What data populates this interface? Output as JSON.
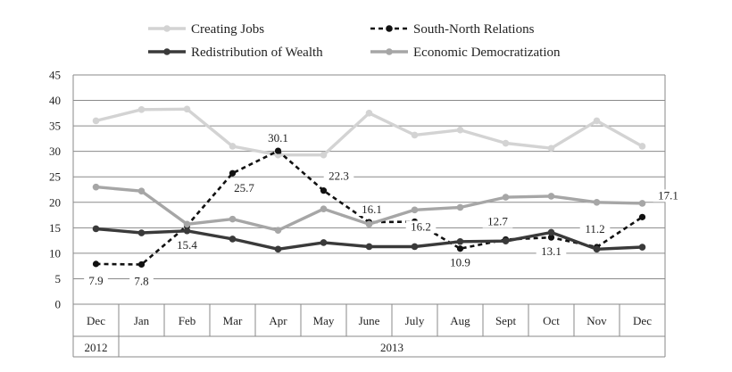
{
  "chart_data": {
    "type": "line",
    "categories": [
      "Dec",
      "Jan",
      "Feb",
      "Mar",
      "Apr",
      "May",
      "June",
      "July",
      "Aug",
      "Sept",
      "Oct",
      "Nov",
      "Dec"
    ],
    "year_groups": [
      {
        "label": "2012",
        "start": 0,
        "end": 0
      },
      {
        "label": "2013",
        "start": 1,
        "end": 12
      }
    ],
    "ylim": [
      0,
      45
    ],
    "yticks": [
      0,
      5,
      10,
      15,
      20,
      25,
      30,
      35,
      40,
      45
    ],
    "grid": true,
    "legend_position": "top",
    "series": [
      {
        "name": "Creating Jobs",
        "color": "#d3d3d3",
        "dash": false,
        "values": [
          36,
          38.2,
          38.3,
          31,
          29.3,
          29.3,
          37.5,
          33.2,
          34.2,
          31.6,
          30.6,
          36,
          31
        ]
      },
      {
        "name": "South-North Relations",
        "color": "#111111",
        "dash": true,
        "values": [
          7.9,
          7.8,
          15.4,
          25.7,
          30.1,
          22.3,
          16.1,
          16.2,
          10.9,
          12.7,
          13.1,
          11.2,
          17.1
        ],
        "labels": [
          "7.9",
          "7.8",
          "15.4",
          "25.7",
          "30.1",
          "22.3",
          "16.1",
          "16.2",
          "10.9",
          "12.7",
          "13.1",
          "11.2",
          "17.1"
        ]
      },
      {
        "name": "Redistribution of Wealth",
        "color": "#3a3a3a",
        "dash": false,
        "values": [
          14.8,
          14,
          14.4,
          12.8,
          10.8,
          12.1,
          11.3,
          11.3,
          12.3,
          12.4,
          14.1,
          10.8,
          11.2
        ]
      },
      {
        "name": "Economic Democratization",
        "color": "#a6a6a6",
        "dash": false,
        "values": [
          23,
          22.2,
          15.7,
          16.7,
          14.5,
          18.7,
          15.7,
          18.5,
          19,
          21,
          21.2,
          20,
          19.8
        ]
      }
    ]
  }
}
